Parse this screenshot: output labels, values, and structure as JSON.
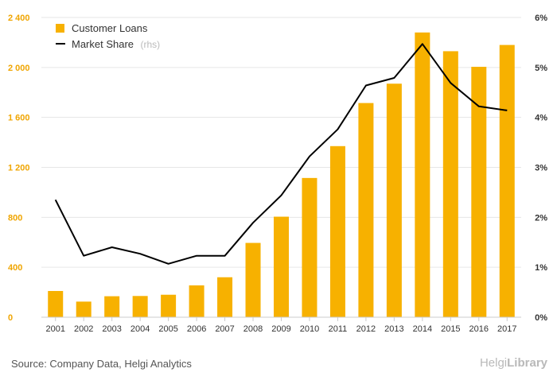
{
  "chart_data": {
    "type": "bar",
    "categories": [
      "2001",
      "2002",
      "2003",
      "2004",
      "2005",
      "2006",
      "2007",
      "2008",
      "2009",
      "2010",
      "2011",
      "2012",
      "2013",
      "2014",
      "2015",
      "2016",
      "2017"
    ],
    "series": [
      {
        "name": "Customer Loans",
        "type": "bar",
        "axis": "left",
        "color": "#f7b100",
        "values": [
          210,
          125,
          168,
          170,
          180,
          255,
          320,
          595,
          805,
          1115,
          1370,
          1715,
          1870,
          2280,
          2130,
          2005,
          2180
        ]
      },
      {
        "name": "Market Share",
        "suffix": "(rhs)",
        "type": "line",
        "axis": "right",
        "color": "#000000",
        "values": [
          2.35,
          1.23,
          1.4,
          1.27,
          1.07,
          1.23,
          1.23,
          1.89,
          2.44,
          3.22,
          3.76,
          4.64,
          4.79,
          5.47,
          4.69,
          4.22,
          4.14
        ]
      }
    ],
    "y_left": {
      "ylim": [
        0,
        2400
      ],
      "ticks": [
        0,
        400,
        800,
        1200,
        1600,
        2000,
        2400
      ],
      "tick_labels": [
        "0",
        "400",
        "800",
        "1 200",
        "1 600",
        "2 000",
        "2 400"
      ],
      "color": "#f0a500"
    },
    "y_right": {
      "ylim": [
        0,
        6
      ],
      "ticks": [
        0,
        1,
        2,
        3,
        4,
        5,
        6
      ],
      "tick_labels": [
        "0%",
        "1%",
        "2%",
        "3%",
        "4%",
        "5%",
        "6%"
      ]
    },
    "grid": true,
    "legend_position": "top-left"
  },
  "footer": {
    "source": "Source: Company Data, Helgi Analytics",
    "brand_prefix": "Helgi",
    "brand_suffix": "Library"
  }
}
